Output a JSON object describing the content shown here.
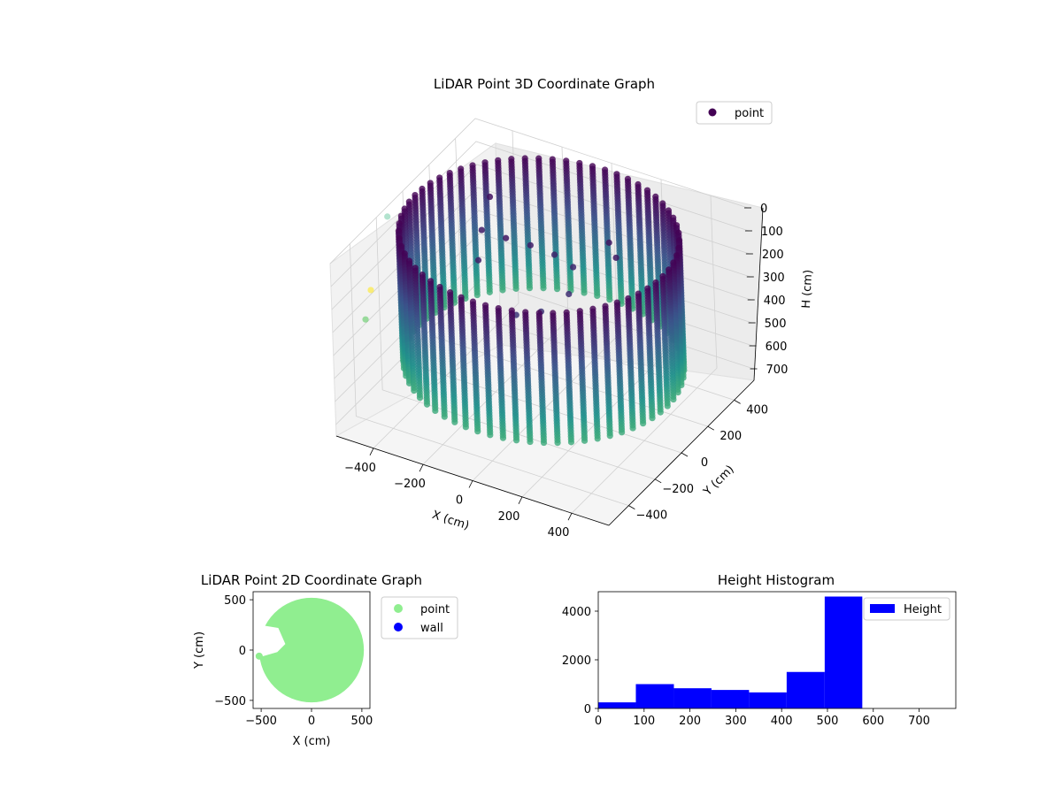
{
  "chart_data": [
    {
      "type": "scatter",
      "projection": "3d",
      "title": "LiDAR Point 3D Coordinate Graph",
      "xlabel": "X (cm)",
      "ylabel": "Y (cm)",
      "zlabel": "H (cm)",
      "xlim": [
        -550,
        550
      ],
      "ylim": [
        -550,
        550
      ],
      "zlim": [
        750,
        0
      ],
      "xticks": [
        "−400",
        "−200",
        "0",
        "200",
        "400"
      ],
      "yticks": [
        "−400",
        "−200",
        "0",
        "200",
        "400"
      ],
      "zticks": [
        "0",
        "100",
        "200",
        "300",
        "400",
        "500",
        "600",
        "700"
      ],
      "legend": {
        "entries": [
          "point"
        ],
        "placement": "top-right"
      },
      "colormap": "viridis",
      "series": [
        {
          "name": "point",
          "color": "#440154",
          "wall": {
            "shape": "cylinder",
            "radius": 500,
            "height_range": [
              0,
              575
            ]
          },
          "interior_points": [
            {
              "x": -180,
              "y": 80,
              "h": 120
            },
            {
              "x": -120,
              "y": 150,
              "h": 170
            },
            {
              "x": -40,
              "y": 180,
              "h": 200
            },
            {
              "x": 40,
              "y": 170,
              "h": 220
            },
            {
              "x": 80,
              "y": 60,
              "h": 260
            },
            {
              "x": 20,
              "y": -40,
              "h": 300
            },
            {
              "x": -60,
              "y": -80,
              "h": 320
            },
            {
              "x": -240,
              "y": -20,
              "h": 180
            },
            {
              "x": -300,
              "y": 120,
              "h": 150
            },
            {
              "x": -340,
              "y": 260,
              "h": 100
            },
            {
              "x": 140,
              "y": 260,
              "h": 130
            },
            {
              "x": 200,
              "y": 200,
              "h": 140
            }
          ],
          "outliers": [
            {
              "x": -700,
              "y": 150,
              "h": 250,
              "color": "#7fd1ae"
            },
            {
              "x": -650,
              "y": -80,
              "h": 420,
              "color": "#fde725"
            },
            {
              "x": -620,
              "y": -180,
              "h": 480,
              "color": "#5ec962"
            }
          ]
        }
      ]
    },
    {
      "type": "scatter",
      "title": "LiDAR Point 2D Coordinate Graph",
      "xlabel": "X (cm)",
      "ylabel": "Y (cm)",
      "xlim": [
        -580,
        580
      ],
      "ylim": [
        -580,
        580
      ],
      "xticks": [
        -500,
        0,
        500
      ],
      "yticks": [
        -500,
        0,
        500
      ],
      "legend": {
        "entries": [
          "point",
          "wall"
        ],
        "placement": "outside-right"
      },
      "series": [
        {
          "name": "point",
          "color": "#90ee90",
          "shape": "filled-disc",
          "radius": 520,
          "notch": "left"
        },
        {
          "name": "wall",
          "color": "#0000ff"
        }
      ]
    },
    {
      "type": "bar",
      "title": "Height Histogram",
      "xlabel": "",
      "ylabel": "",
      "xlim": [
        0,
        780
      ],
      "ylim": [
        0,
        4800
      ],
      "xticks": [
        0,
        100,
        200,
        300,
        400,
        500,
        600,
        700
      ],
      "yticks": [
        0,
        2000,
        4000
      ],
      "legend": {
        "entries": [
          "Height"
        ],
        "placement": "top-right"
      },
      "series": [
        {
          "name": "Height",
          "color": "#0000ff",
          "bins": [
            {
              "start": 0,
              "end": 82,
              "value": 250
            },
            {
              "start": 82,
              "end": 165,
              "value": 1000
            },
            {
              "start": 165,
              "end": 247,
              "value": 830
            },
            {
              "start": 247,
              "end": 329,
              "value": 760
            },
            {
              "start": 329,
              "end": 411,
              "value": 660
            },
            {
              "start": 411,
              "end": 494,
              "value": 1500
            },
            {
              "start": 494,
              "end": 576,
              "value": 4600
            },
            {
              "start": 576,
              "end": 658,
              "value": 0
            },
            {
              "start": 658,
              "end": 740,
              "value": 0
            }
          ]
        }
      ]
    }
  ]
}
